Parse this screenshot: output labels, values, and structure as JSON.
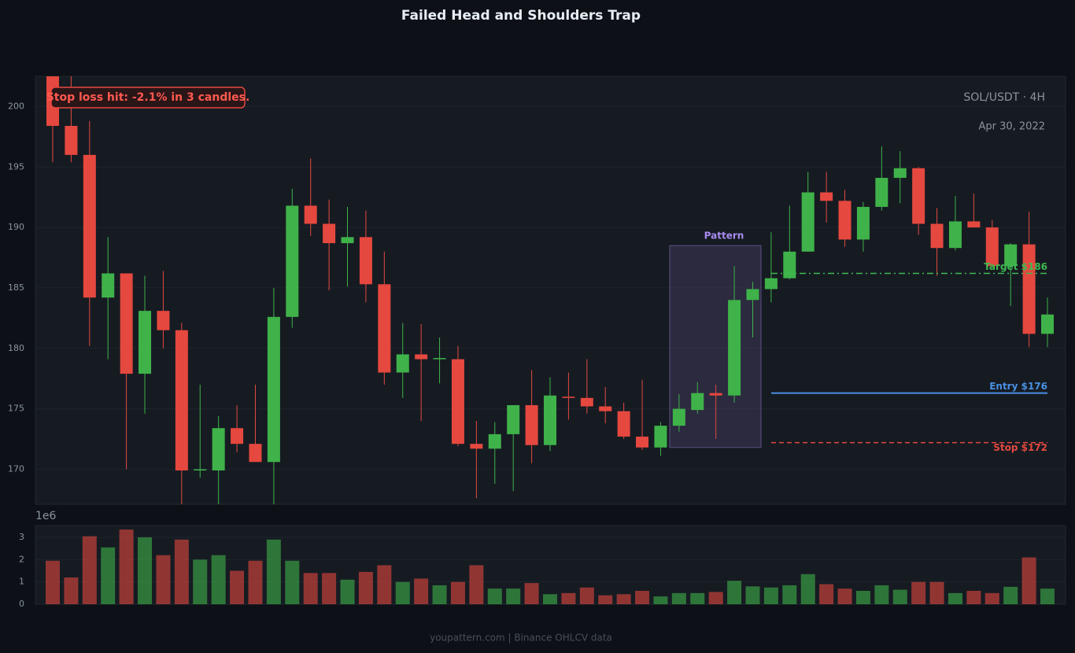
{
  "chart_data": {
    "type": "candlestick",
    "title": "Failed Head and Shoulders Trap",
    "annotation": "Stop loss hit: -2.1% in 3 candles.",
    "symbol": "SOL/USDT · 4H",
    "date": "Apr 30, 2022",
    "pattern_label": "Pattern",
    "pattern_range": [
      171.8,
      188.5
    ],
    "levels": [
      {
        "label": "Target $186",
        "value": 186.2,
        "color": "#3fb950",
        "style": "dashdot"
      },
      {
        "label": "Entry $176",
        "value": 176.3,
        "color": "#4a90e2",
        "style": "solid"
      },
      {
        "label": "Stop $172",
        "value": 172.2,
        "color": "#e5483f",
        "style": "dashed"
      }
    ],
    "up_color": "#3fb24a",
    "down_color": "#e5483f",
    "open": [
      202.9,
      198.4,
      196.0,
      184.2,
      186.2,
      177.9,
      183.1,
      181.5,
      169.9,
      169.9,
      173.4,
      172.1,
      170.6,
      182.6,
      191.8,
      190.3,
      188.7,
      189.2,
      185.3,
      178.0,
      179.5,
      179.1,
      179.1,
      172.1,
      171.7,
      172.9,
      175.3,
      172.0,
      176.0,
      175.9,
      175.2,
      174.8,
      172.7,
      171.8,
      173.6,
      174.9,
      176.3,
      176.1,
      184.0,
      184.9,
      185.8,
      188.0,
      192.9,
      192.2,
      189.0,
      191.7,
      194.1,
      194.9,
      190.3,
      188.3,
      190.5,
      190.0,
      186.8,
      188.6,
      181.2
    ],
    "high": [
      204.0,
      202.5,
      198.8,
      189.2,
      186.2,
      186.0,
      186.4,
      182.1,
      177.0,
      174.4,
      175.3,
      177.0,
      185.0,
      193.2,
      195.7,
      192.3,
      191.7,
      191.4,
      188.0,
      182.1,
      182.0,
      180.9,
      180.2,
      174.0,
      173.9,
      175.3,
      178.2,
      177.6,
      178.0,
      179.1,
      176.8,
      175.5,
      177.4,
      173.9,
      176.2,
      177.2,
      177.0,
      186.8,
      185.5,
      189.6,
      191.8,
      194.6,
      194.6,
      193.1,
      192.1,
      196.7,
      196.3,
      195.0,
      191.6,
      192.6,
      192.8,
      190.6,
      188.7,
      191.3,
      184.2
    ],
    "low": [
      195.4,
      195.4,
      180.2,
      179.1,
      170.0,
      174.6,
      180.0,
      166.8,
      169.3,
      167.0,
      171.4,
      170.6,
      167.0,
      181.7,
      189.3,
      184.8,
      185.1,
      183.8,
      177.0,
      175.9,
      174.0,
      177.1,
      171.9,
      167.6,
      168.8,
      168.2,
      170.5,
      171.5,
      174.1,
      174.6,
      173.8,
      172.5,
      171.6,
      171.1,
      173.1,
      174.6,
      172.5,
      175.5,
      180.9,
      183.8,
      185.7,
      188.0,
      190.4,
      188.4,
      188.0,
      191.4,
      192.0,
      189.4,
      186.0,
      188.1,
      190.0,
      186.8,
      183.5,
      180.1,
      180.1
    ],
    "close": [
      198.4,
      196.0,
      184.2,
      186.2,
      177.9,
      183.1,
      181.5,
      169.9,
      170.0,
      173.4,
      172.1,
      170.6,
      182.6,
      191.8,
      190.3,
      188.7,
      189.2,
      185.3,
      178.0,
      179.5,
      179.1,
      179.2,
      172.1,
      171.7,
      172.9,
      175.3,
      172.0,
      176.1,
      175.9,
      175.2,
      174.8,
      172.7,
      171.8,
      173.6,
      175.0,
      176.3,
      176.1,
      184.0,
      184.9,
      185.8,
      188.0,
      192.9,
      192.2,
      189.0,
      191.7,
      194.1,
      194.9,
      190.3,
      188.3,
      190.5,
      190.0,
      186.8,
      188.6,
      181.2,
      182.8
    ],
    "ylim": [
      167.1,
      202.5
    ],
    "yticks": [
      170,
      175,
      180,
      185,
      190,
      195,
      200
    ],
    "volume": [
      1.95,
      1.2,
      3.05,
      2.55,
      3.35,
      3.0,
      2.2,
      2.9,
      2.0,
      2.2,
      1.5,
      1.95,
      2.9,
      1.95,
      1.4,
      1.4,
      1.1,
      1.45,
      1.75,
      1.0,
      1.15,
      0.85,
      1.0,
      1.75,
      0.7,
      0.7,
      0.95,
      0.45,
      0.5,
      0.75,
      0.4,
      0.45,
      0.6,
      0.35,
      0.5,
      0.5,
      0.55,
      1.05,
      0.8,
      0.75,
      0.85,
      1.35,
      0.9,
      0.7,
      0.6,
      0.85,
      0.65,
      1.0,
      1.0,
      0.5,
      0.6,
      0.5,
      0.78,
      2.1,
      0.7
    ],
    "volume_offset": "1e6",
    "volume_ylim": [
      0,
      3.53
    ],
    "volume_yticks": [
      0,
      1,
      2,
      3
    ],
    "grid": true,
    "footer": "youpattern.com | Binance OHLCV data"
  }
}
